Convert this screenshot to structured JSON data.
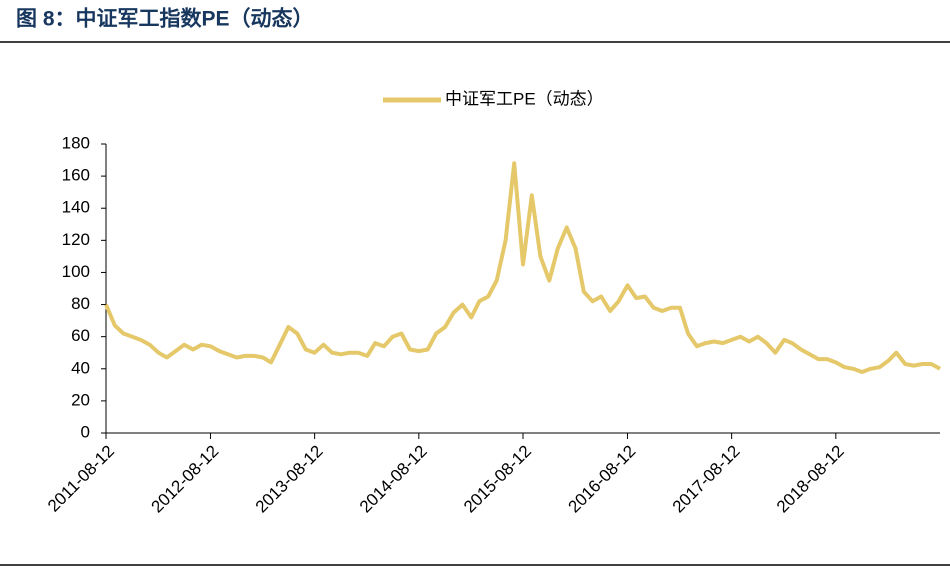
{
  "chart_data": {
    "type": "line",
    "title": "图 8：中证军工指数PE（动态）",
    "x": [
      "2011-08-12",
      "2011-09-12",
      "2011-10-12",
      "2011-11-12",
      "2011-12-12",
      "2012-01-12",
      "2012-02-12",
      "2012-03-12",
      "2012-04-12",
      "2012-05-12",
      "2012-06-12",
      "2012-07-12",
      "2012-08-12",
      "2012-09-12",
      "2012-10-12",
      "2012-11-12",
      "2012-12-12",
      "2013-01-12",
      "2013-02-12",
      "2013-03-12",
      "2013-04-12",
      "2013-05-12",
      "2013-06-12",
      "2013-07-12",
      "2013-08-12",
      "2013-09-12",
      "2013-10-12",
      "2013-11-12",
      "2013-12-12",
      "2014-01-12",
      "2014-02-12",
      "2014-03-12",
      "2014-04-12",
      "2014-05-12",
      "2014-06-12",
      "2014-07-12",
      "2014-08-12",
      "2014-09-12",
      "2014-10-12",
      "2014-11-12",
      "2014-12-12",
      "2015-01-12",
      "2015-02-12",
      "2015-03-12",
      "2015-04-12",
      "2015-05-12",
      "2015-06-12",
      "2015-07-12",
      "2015-08-12",
      "2015-09-12",
      "2015-10-12",
      "2015-11-12",
      "2015-12-12",
      "2016-01-12",
      "2016-02-12",
      "2016-03-12",
      "2016-04-12",
      "2016-05-12",
      "2016-06-12",
      "2016-07-12",
      "2016-08-12",
      "2016-09-12",
      "2016-10-12",
      "2016-11-12",
      "2016-12-12",
      "2017-01-12",
      "2017-02-12",
      "2017-03-12",
      "2017-04-12",
      "2017-05-12",
      "2017-06-12",
      "2017-07-12",
      "2017-08-12",
      "2017-09-12",
      "2017-10-12",
      "2017-11-12",
      "2017-12-12",
      "2018-01-12",
      "2018-02-12",
      "2018-03-12",
      "2018-04-12",
      "2018-05-12",
      "2018-06-12",
      "2018-07-12",
      "2018-08-12",
      "2018-09-12",
      "2018-10-12",
      "2018-11-12",
      "2018-12-12",
      "2019-01-12",
      "2019-02-12",
      "2019-03-12",
      "2019-04-12",
      "2019-05-12",
      "2019-06-12",
      "2019-07-12",
      "2019-08-12"
    ],
    "series": [
      {
        "name": "中证军工PE（动态）",
        "color": "#e5c86a",
        "values": [
          80,
          67,
          62,
          60,
          58,
          55,
          50,
          47,
          51,
          55,
          52,
          55,
          54,
          51,
          49,
          47,
          48,
          48,
          47,
          44,
          55,
          66,
          62,
          52,
          50,
          55,
          50,
          49,
          50,
          50,
          48,
          56,
          54,
          60,
          62,
          52,
          51,
          52,
          62,
          66,
          75,
          80,
          72,
          82,
          85,
          95,
          120,
          168,
          105,
          148,
          110,
          95,
          115,
          128,
          115,
          88,
          82,
          85,
          76,
          82,
          92,
          84,
          85,
          78,
          76,
          78,
          78,
          62,
          54,
          56,
          57,
          56,
          58,
          60,
          57,
          60,
          56,
          50,
          58,
          56,
          52,
          49,
          46,
          46,
          44,
          41,
          40,
          38,
          40,
          41,
          45,
          50,
          43,
          42,
          43,
          43,
          40
        ]
      }
    ],
    "xlim": [
      "2011-08-12",
      "2019-08-12"
    ],
    "xticks": [
      "2011-08-12",
      "2012-08-12",
      "2013-08-12",
      "2014-08-12",
      "2015-08-12",
      "2016-08-12",
      "2017-08-12",
      "2018-08-12"
    ],
    "ylim": [
      0,
      180
    ],
    "yticks": [
      0,
      20,
      40,
      60,
      80,
      100,
      120,
      140,
      160,
      180
    ],
    "legend": "top"
  }
}
